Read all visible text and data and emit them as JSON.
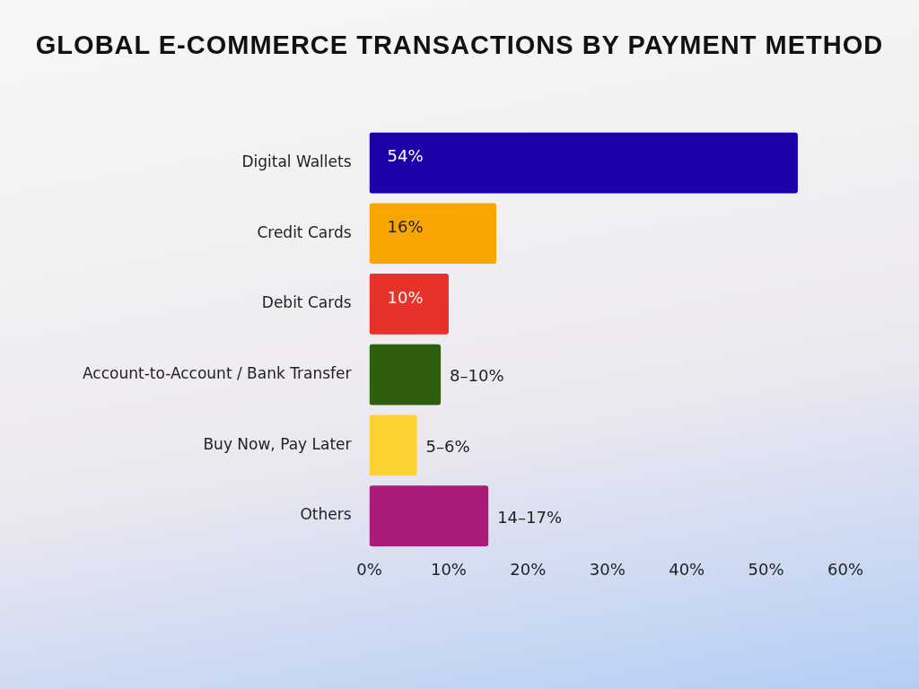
{
  "chart_data": {
    "type": "bar",
    "orientation": "horizontal",
    "title": "GLOBAL E-COMMERCE TRANSACTIONS BY PAYMENT METHOD",
    "categories": [
      "Digital Wallets",
      "Credit Cards",
      "Debit Cards",
      "Account-to-Account / Bank Transfer",
      "Buy Now, Pay Later",
      "Others"
    ],
    "values": [
      54,
      16,
      10,
      9,
      6,
      15
    ],
    "colors": [
      "#1e00a8",
      "#f9a602",
      "#e8312a",
      "#2f5e10",
      "#fdd130",
      "#ab1c7a"
    ],
    "value_labels": [
      "54%",
      "16%",
      "10%",
      null,
      null,
      null
    ],
    "annotations": [
      {
        "text": "8–10%",
        "x": 9,
        "y": "Account-to-Account / Bank Transfer"
      },
      {
        "text": "5–6%",
        "x": 6,
        "y": "Buy Now, Pay Later"
      },
      {
        "text": "14–17%",
        "x": 15,
        "y": "Others"
      }
    ],
    "xlim": [
      0,
      60
    ],
    "xticks": [
      {
        "value": 0,
        "label": "0%"
      },
      {
        "value": 10,
        "label": "10%"
      },
      {
        "value": 20,
        "label": "20%"
      },
      {
        "value": 30,
        "label": "30%"
      },
      {
        "value": 40,
        "label": "40%"
      },
      {
        "value": 50,
        "label": "50%"
      },
      {
        "value": 60,
        "label": "60%"
      }
    ],
    "grid": false,
    "legend": false
  }
}
